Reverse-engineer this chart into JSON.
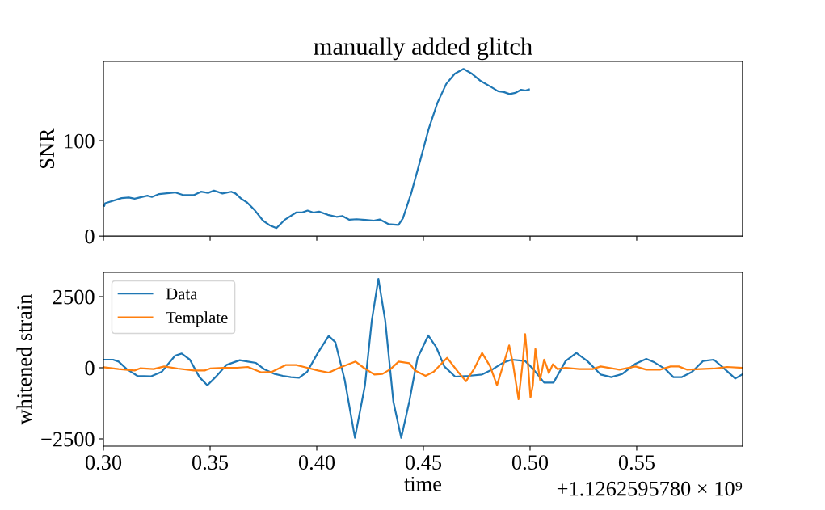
{
  "chart_data": [
    {
      "type": "line",
      "title": "manually added glitch",
      "ylabel": "SNR",
      "xlim": [
        0.3,
        0.5996
      ],
      "xticks": [
        {
          "value": 0.3,
          "label": null
        },
        {
          "value": 0.35,
          "label": null
        },
        {
          "value": 0.4,
          "label": null
        },
        {
          "value": 0.45,
          "label": null
        },
        {
          "value": 0.5,
          "label": null
        },
        {
          "value": 0.55,
          "label": null
        }
      ],
      "ylim": [
        0,
        183
      ],
      "yticks": [
        0,
        100
      ],
      "tick_labels": "y",
      "grid": false,
      "legend": false,
      "series": [
        {
          "color": "#1f77b4",
          "x": [
            0.3004,
            0.3008,
            0.3085,
            0.3119,
            0.3146,
            0.3206,
            0.3227,
            0.3261,
            0.3335,
            0.3376,
            0.3423,
            0.3457,
            0.3491,
            0.3518,
            0.3558,
            0.3599,
            0.3619,
            0.3646,
            0.3673,
            0.3707,
            0.3748,
            0.3781,
            0.3811,
            0.3849,
            0.3903,
            0.393,
            0.3957,
            0.3984,
            0.4011,
            0.4052,
            0.4093,
            0.412,
            0.4153,
            0.4187,
            0.4228,
            0.4268,
            0.4295,
            0.4336,
            0.4383,
            0.4404,
            0.4444,
            0.4485,
            0.4525,
            0.4566,
            0.4607,
            0.4647,
            0.4688,
            0.4728,
            0.4769,
            0.4816,
            0.485,
            0.4877,
            0.4904,
            0.4931,
            0.4958,
            0.4979,
            0.4995
          ],
          "values": [
            31.7,
            34.4,
            39.8,
            40.4,
            39.2,
            42.3,
            41.0,
            44.1,
            45.8,
            42.9,
            42.9,
            46.5,
            45.3,
            47.7,
            44.7,
            46.5,
            44.7,
            39.2,
            35.3,
            27.7,
            16.2,
            11.1,
            8.4,
            16.9,
            24.7,
            24.7,
            26.8,
            24.7,
            25.6,
            22.3,
            20.2,
            21.1,
            17.1,
            17.7,
            16.9,
            16.2,
            17.4,
            12.6,
            11.7,
            18.6,
            45.8,
            79.2,
            112.5,
            139.7,
            159.4,
            170.0,
            175.1,
            170.0,
            162.4,
            156.4,
            151.8,
            150.9,
            148.8,
            150.0,
            153.3,
            152.5,
            153.6
          ]
        }
      ]
    },
    {
      "type": "line",
      "xlabel": "time",
      "ylabel": "whitened strain",
      "annotations": [
        "+1.1262595780 × 10⁹"
      ],
      "xlim": [
        0.3,
        0.5996
      ],
      "xticks": [
        {
          "value": 0.3,
          "label": "0.30"
        },
        {
          "value": 0.35,
          "label": "0.35"
        },
        {
          "value": 0.4,
          "label": "0.40"
        },
        {
          "value": 0.45,
          "label": "0.45"
        },
        {
          "value": 0.5,
          "label": "0.50"
        },
        {
          "value": 0.55,
          "label": "0.55"
        }
      ],
      "ylim": [
        -2756,
        3352
      ],
      "yticks": [
        {
          "value": -2500,
          "label": "−2500"
        },
        0,
        2500
      ],
      "grid": false,
      "legend": "top left",
      "series": [
        {
          "name": "Data",
          "color": "#1f77b4",
          "x": [
            0.3001,
            0.3045,
            0.3071,
            0.3109,
            0.3159,
            0.3222,
            0.3273,
            0.3336,
            0.3367,
            0.3405,
            0.345,
            0.3487,
            0.3525,
            0.3576,
            0.3639,
            0.3677,
            0.3715,
            0.3753,
            0.3803,
            0.3841,
            0.3879,
            0.3917,
            0.3955,
            0.4005,
            0.4056,
            0.4087,
            0.4131,
            0.4179,
            0.4226,
            0.4258,
            0.4289,
            0.4321,
            0.4359,
            0.4396,
            0.4434,
            0.4472,
            0.4523,
            0.4561,
            0.4598,
            0.4649,
            0.4712,
            0.4775,
            0.4826,
            0.4876,
            0.4914,
            0.4977,
            0.5015,
            0.5066,
            0.511,
            0.5167,
            0.5217,
            0.5268,
            0.5331,
            0.5381,
            0.5432,
            0.5495,
            0.5545,
            0.5583,
            0.5634,
            0.5672,
            0.571,
            0.576,
            0.5811,
            0.5861,
            0.5899,
            0.5962,
            0.5994
          ],
          "values": [
            284,
            284,
            218,
            -47,
            -284,
            -303,
            -142,
            426,
            502,
            284,
            -331,
            -616,
            -331,
            95,
            265,
            218,
            170,
            -47,
            -218,
            -284,
            -331,
            -350,
            -142,
            521,
            1117,
            900,
            -426,
            -2462,
            -616,
            1657,
            3125,
            1657,
            -1184,
            -2462,
            -1184,
            331,
            1136,
            710,
            47,
            -313,
            -284,
            -237,
            -47,
            189,
            284,
            237,
            -47,
            -521,
            -521,
            237,
            521,
            237,
            -237,
            -331,
            -218,
            142,
            313,
            189,
            -47,
            -331,
            -331,
            -142,
            237,
            284,
            47,
            -379,
            -237
          ]
        },
        {
          "name": "Template",
          "color": "#ff7f0e",
          "x": [
            0.3001,
            0.3071,
            0.3146,
            0.3172,
            0.3235,
            0.3285,
            0.3348,
            0.3424,
            0.3475,
            0.35,
            0.3563,
            0.3626,
            0.3677,
            0.374,
            0.379,
            0.3854,
            0.3904,
            0.3955,
            0.4005,
            0.4056,
            0.4106,
            0.4182,
            0.422,
            0.427,
            0.4308,
            0.4346,
            0.4384,
            0.4434,
            0.446,
            0.451,
            0.4548,
            0.4611,
            0.4662,
            0.47,
            0.4737,
            0.4775,
            0.4813,
            0.4845,
            0.4876,
            0.4902,
            0.492,
            0.4946,
            0.4965,
            0.4977,
            0.499,
            0.5002,
            0.5013,
            0.5025,
            0.5035,
            0.5047,
            0.5066,
            0.5078,
            0.5088,
            0.5107,
            0.5129,
            0.5167,
            0.523,
            0.5293,
            0.5331,
            0.5419,
            0.5495,
            0.5545,
            0.5609,
            0.5659,
            0.5697,
            0.5735,
            0.5798,
            0.5861,
            0.5924,
            0.5994
          ],
          "values": [
            19,
            -47,
            -95,
            -19,
            -47,
            47,
            -28,
            -95,
            -95,
            -28,
            0,
            0,
            28,
            -161,
            -142,
            95,
            95,
            0,
            -95,
            -170,
            0,
            218,
            0,
            -237,
            -218,
            -47,
            218,
            161,
            -95,
            -284,
            -142,
            350,
            -142,
            -474,
            -47,
            521,
            47,
            -616,
            142,
            786,
            142,
            -1108,
            142,
            1184,
            142,
            -1042,
            -616,
            663,
            142,
            -426,
            284,
            47,
            -189,
            123,
            -47,
            0,
            -47,
            -47,
            47,
            -66,
            47,
            -66,
            -66,
            47,
            47,
            -66,
            -47,
            -28,
            28,
            0
          ]
        }
      ]
    }
  ]
}
